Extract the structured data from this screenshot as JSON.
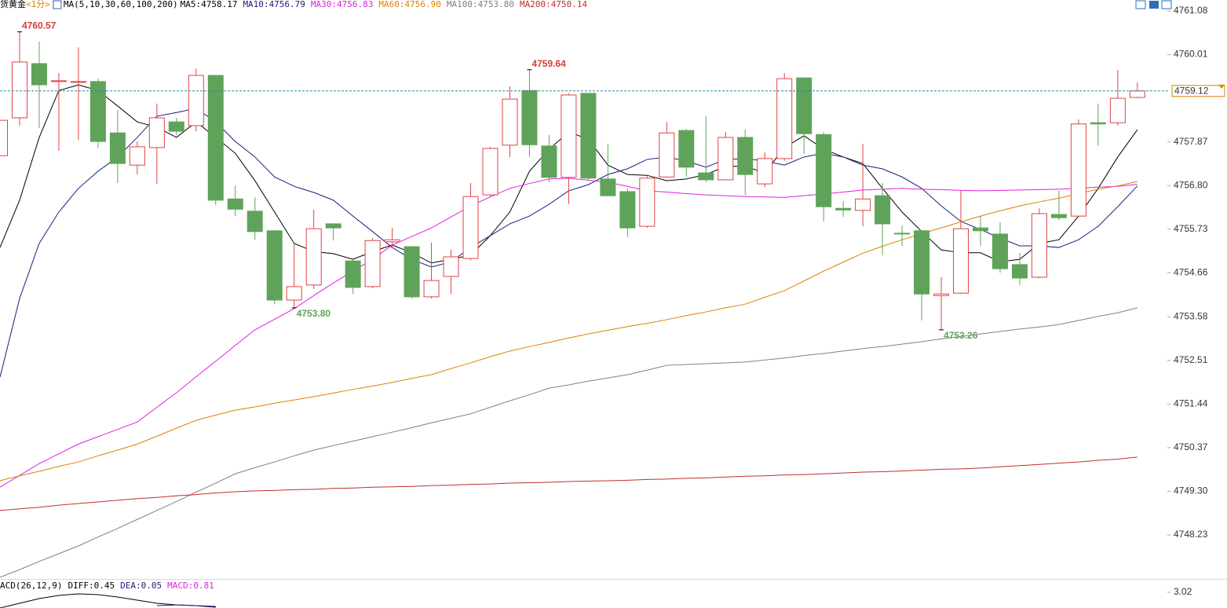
{
  "chart_data": {
    "type": "candlestick",
    "title": "货黄金",
    "period": "<1分>",
    "indicator": "MA(5,10,30,60,100,200)",
    "legend_separator": ":",
    "categories": [
      null,
      null,
      null,
      null,
      null,
      null,
      null,
      null,
      null,
      null,
      null,
      null,
      null,
      null,
      null,
      null,
      null,
      null,
      null,
      null,
      null,
      null,
      null,
      null,
      null,
      null,
      null,
      null,
      null,
      null,
      null,
      null,
      null,
      null,
      null,
      null,
      null,
      null,
      null,
      null,
      null,
      null,
      null,
      null,
      null,
      null,
      null,
      null,
      null,
      null,
      null,
      null,
      null,
      null,
      null,
      null,
      null,
      null,
      null
    ],
    "open": [
      4757.53,
      4758.46,
      4759.79,
      4759.35,
      4759.33,
      4759.35,
      4758.09,
      4757.3,
      4757.73,
      4758.36,
      4758.27,
      4759.5,
      4756.47,
      4756.17,
      4755.69,
      4753.99,
      4754.36,
      4755.86,
      4754.95,
      4754.32,
      4755.42,
      4755.3,
      4754.07,
      4754.57,
      4755.01,
      4756.57,
      4757.79,
      4759.13,
      4757.77,
      4757.0,
      4759.06,
      4756.96,
      4756.65,
      4755.8,
      4757.01,
      4758.15,
      4757.11,
      4756.94,
      4757.98,
      4756.84,
      4757.46,
      4759.44,
      4758.05,
      4756.24,
      4756.19,
      4756.55,
      4755.63,
      4755.69,
      4754.1,
      4754.16,
      4755.76,
      4755.61,
      4754.86,
      4754.55,
      4756.09,
      4756.05,
      4758.34,
      4758.34,
      4758.96
    ],
    "high": [
      4758.4,
      4760.57,
      4760.33,
      4759.56,
      4760.19,
      4759.42,
      4758.65,
      4757.88,
      4758.81,
      4758.46,
      4759.67,
      4759.5,
      4756.8,
      4756.51,
      4755.69,
      4755.38,
      4756.21,
      4755.88,
      4755.03,
      4755.51,
      4755.76,
      4755.3,
      4755.4,
      4755.22,
      4756.86,
      4757.75,
      4759.23,
      4759.64,
      4758.04,
      4759.06,
      4759.06,
      4757.82,
      4756.73,
      4757.03,
      4758.36,
      4758.19,
      4758.5,
      4758.11,
      4758.17,
      4757.61,
      4759.56,
      4759.44,
      4758.11,
      4756.42,
      4757.82,
      4756.86,
      4755.82,
      4755.7,
      4754.55,
      4756.67,
      4756.05,
      4755.9,
      4755.15,
      4756.24,
      4756.67,
      4758.42,
      4758.81,
      4759.63,
      4759.33
    ],
    "low": [
      4757.53,
      4758.27,
      4758.21,
      4757.65,
      4757.92,
      4757.73,
      4756.86,
      4757.07,
      4756.84,
      4758.04,
      4758.13,
      4756.32,
      4756.05,
      4755.47,
      4753.89,
      4753.8,
      4754.26,
      4755.45,
      4754.14,
      4754.28,
      4755.26,
      4754.03,
      4754.03,
      4754.14,
      4754.97,
      4756.53,
      4757.5,
      4757.5,
      4756.88,
      4756.34,
      4756.92,
      4756.53,
      4755.53,
      4755.76,
      4756.99,
      4757.01,
      4756.88,
      4756.92,
      4756.57,
      4756.76,
      4757.4,
      4757.57,
      4755.92,
      4756.03,
      4755.8,
      4755.09,
      4755.32,
      4753.49,
      4753.26,
      4754.14,
      4755.32,
      4754.66,
      4754.36,
      4754.53,
      4755.95,
      4756.03,
      4757.77,
      4758.27,
      4758.94
    ],
    "close": [
      4758.4,
      4759.83,
      4759.27,
      4759.37,
      4759.35,
      4757.88,
      4757.34,
      4757.75,
      4758.46,
      4758.13,
      4759.5,
      4756.44,
      4756.22,
      4755.67,
      4753.99,
      4754.32,
      4755.74,
      4755.76,
      4754.3,
      4755.45,
      4755.47,
      4754.07,
      4754.47,
      4755.05,
      4756.53,
      4757.71,
      4758.92,
      4757.8,
      4757.0,
      4759.02,
      4756.98,
      4756.55,
      4755.76,
      4756.98,
      4758.09,
      4757.25,
      4756.94,
      4757.98,
      4757.07,
      4757.46,
      4759.42,
      4758.07,
      4756.28,
      4756.2,
      4756.47,
      4755.86,
      4755.61,
      4754.14,
      4754.14,
      4755.74,
      4755.69,
      4754.76,
      4754.53,
      4756.11,
      4756.01,
      4758.31,
      4758.31,
      4758.94,
      4759.12
    ],
    "up_color": "#e04343",
    "down_color": "#5fa35a",
    "series": [
      {
        "name": "MA5",
        "color": "#000000",
        "legend_value": 4758.17,
        "values": [
          4755.28,
          4756.44,
          4757.98,
          4759.13,
          4759.27,
          4759.13,
          4758.75,
          4758.36,
          4758.23,
          4757.98,
          4758.36,
          4757.98,
          4757.59,
          4756.92,
          4756.15,
          4755.38,
          4755.18,
          4755.13,
          4754.99,
          4755.18,
          4755.34,
          4755.15,
          4754.9,
          4754.99,
          4755.09,
          4755.57,
          4756.15,
          4757.15,
          4757.69,
          4758.11,
          4757.94,
          4757.3,
          4757.07,
          4757.05,
          4756.92,
          4756.96,
          4757.07,
          4757.27,
          4757.27,
          4757.11,
          4757.73,
          4758.02,
          4757.69,
          4757.5,
          4757.34,
          4756.73,
          4756.15,
          4755.67,
          4755.22,
          4755.15,
          4755.15,
          4754.93,
          4754.99,
          4755.38,
          4755.47,
          4756.05,
          4756.73,
          4757.5,
          4758.17
        ]
      },
      {
        "name": "MA10",
        "color": "#1c1c80",
        "legend_value": 4756.79,
        "values": [
          4752.1,
          4754.03,
          4755.38,
          4756.15,
          4756.73,
          4757.15,
          4757.5,
          4757.98,
          4758.5,
          4758.59,
          4758.69,
          4758.36,
          4757.88,
          4757.5,
          4757.01,
          4756.78,
          4756.63,
          4756.44,
          4756.05,
          4755.67,
          4755.28,
          4754.99,
          4754.8,
          4754.93,
          4755.28,
          4755.57,
          4755.86,
          4756.05,
          4756.34,
          4756.67,
          4756.82,
          4757.07,
          4757.21,
          4757.44,
          4757.5,
          4757.4,
          4757.25,
          4757.44,
          4757.46,
          4757.4,
          4757.3,
          4757.5,
          4757.59,
          4757.5,
          4757.3,
          4757.21,
          4757.01,
          4756.73,
          4756.3,
          4755.92,
          4755.72,
          4755.51,
          4755.32,
          4755.32,
          4755.28,
          4755.47,
          4755.8,
          4756.28,
          4756.79
        ]
      },
      {
        "name": "MA30",
        "color": "#e020e0",
        "legend_value": 4756.83,
        "values": [
          4749.4,
          4749.69,
          4749.98,
          4750.22,
          4750.46,
          4750.64,
          4750.82,
          4751.0,
          4751.36,
          4751.72,
          4752.11,
          4752.49,
          4752.88,
          4753.26,
          4753.52,
          4753.78,
          4754.1,
          4754.41,
          4754.7,
          4754.99,
          4755.34,
          4755.55,
          4755.76,
          4756.03,
          4756.3,
          4756.52,
          4756.73,
          4756.85,
          4756.96,
          4756.98,
          4756.93,
          4756.88,
          4756.78,
          4756.67,
          4756.64,
          4756.6,
          4756.57,
          4756.55,
          4756.53,
          4756.52,
          4756.51,
          4756.55,
          4756.59,
          4756.64,
          4756.69,
          4756.71,
          4756.73,
          4756.71,
          4756.7,
          4756.68,
          4756.67,
          4756.68,
          4756.69,
          4756.7,
          4756.71,
          4756.73,
          4756.76,
          4756.78,
          4756.83
        ]
      },
      {
        "name": "MA60",
        "color": "#e08000",
        "legend_value": {
          "value": 4756.9,
          "label": "4756.90"
        },
        "values": [
          4749.56,
          4749.68,
          4749.79,
          4749.91,
          4750.02,
          4750.17,
          4750.31,
          4750.46,
          4750.65,
          4750.85,
          4751.04,
          4751.17,
          4751.29,
          4751.37,
          4751.46,
          4751.54,
          4751.62,
          4751.71,
          4751.8,
          4751.88,
          4751.97,
          4752.07,
          4752.16,
          4752.31,
          4752.45,
          4752.6,
          4752.74,
          4752.85,
          4752.95,
          4753.06,
          4753.16,
          4753.25,
          4753.34,
          4753.42,
          4753.51,
          4753.61,
          4753.7,
          4753.8,
          4753.89,
          4754.06,
          4754.22,
          4754.46,
          4754.7,
          4754.92,
          4755.14,
          4755.31,
          4755.47,
          4755.62,
          4755.76,
          4755.91,
          4756.05,
          4756.18,
          4756.3,
          4756.4,
          4756.49,
          4756.6,
          4756.71,
          4756.79,
          4756.9
        ]
      },
      {
        "name": "MA100",
        "color": "#808080",
        "legend_value": {
          "value": 4753.8,
          "label": "4753.80"
        },
        "values": [
          4747.19,
          4747.38,
          4747.58,
          4747.77,
          4747.96,
          4748.18,
          4748.39,
          4748.61,
          4748.83,
          4749.05,
          4749.28,
          4749.5,
          4749.73,
          4749.88,
          4750.02,
          4750.17,
          4750.31,
          4750.42,
          4750.53,
          4750.64,
          4750.75,
          4750.86,
          4750.98,
          4751.09,
          4751.2,
          4751.36,
          4751.52,
          4751.67,
          4751.83,
          4751.91,
          4752.0,
          4752.08,
          4752.16,
          4752.27,
          4752.39,
          4752.41,
          4752.43,
          4752.45,
          4752.47,
          4752.52,
          4752.57,
          4752.63,
          4752.68,
          4752.74,
          4752.8,
          4752.85,
          4752.91,
          4752.97,
          4753.04,
          4753.1,
          4753.16,
          4753.22,
          4753.28,
          4753.33,
          4753.39,
          4753.49,
          4753.59,
          4753.68,
          4753.8
        ]
      },
      {
        "name": "MA200",
        "color": "#c0302c",
        "legend_value": 4750.14,
        "values": [
          4748.83,
          4748.87,
          4748.91,
          4748.96,
          4749.0,
          4749.04,
          4749.08,
          4749.12,
          4749.15,
          4749.19,
          4749.22,
          4749.26,
          4749.29,
          4749.31,
          4749.32,
          4749.34,
          4749.35,
          4749.37,
          4749.38,
          4749.4,
          4749.41,
          4749.42,
          4749.44,
          4749.45,
          4749.47,
          4749.48,
          4749.5,
          4749.51,
          4749.52,
          4749.54,
          4749.55,
          4749.56,
          4749.57,
          4749.59,
          4749.6,
          4749.62,
          4749.63,
          4749.65,
          4749.67,
          4749.68,
          4749.7,
          4749.71,
          4749.73,
          4749.75,
          4749.77,
          4749.78,
          4749.8,
          4749.82,
          4749.84,
          4749.85,
          4749.87,
          4749.9,
          4749.93,
          4749.96,
          4749.99,
          4750.02,
          4750.06,
          4750.09,
          4750.14
        ]
      }
    ],
    "annotations": [
      {
        "label": "4760.57",
        "value": 4760.57
      },
      {
        "label": "4759.64",
        "value": 4759.64
      },
      {
        "label": "4753.80",
        "value": 4753.8
      },
      {
        "label": "4753.26",
        "value": 4753.26
      }
    ],
    "high_color": "#d83a36",
    "low_color": "#5fa35a",
    "last_price": 4759.12,
    "last_price_color": "#e08000",
    "ylim": [
      4747.17,
      4761.35
    ],
    "yticks": [
      4761.08,
      4760.01,
      4757.87,
      {
        "value": 4756.8,
        "label": "4756.80"
      },
      4755.73,
      4754.66,
      4753.58,
      4752.51,
      4751.44,
      4750.37,
      {
        "value": 4749.3,
        "label": "4749.30"
      },
      4748.23
    ],
    "grid": false,
    "macd": {
      "title": "ACD(26,12,9)",
      "ylim": [
        2.62,
        3.3
      ],
      "yticks": [
        3.02
      ],
      "series": [
        {
          "name": "DIFF",
          "color": "#000000",
          "legend_value": 0.45,
          "values": [
            2.62,
            2.74,
            2.86,
            2.94,
            2.98,
            2.96,
            2.9,
            2.82,
            2.74,
            2.7,
            2.68,
            2.64,
            null,
            null,
            null,
            null,
            null,
            null,
            null,
            null,
            null,
            null,
            null,
            null,
            null,
            null,
            null,
            null,
            null,
            null,
            null,
            null,
            null,
            null,
            null,
            null,
            null,
            null,
            null,
            null,
            null,
            null,
            null,
            null,
            null,
            null,
            null,
            null,
            null,
            null,
            null,
            null,
            null,
            null,
            null,
            null,
            null,
            null,
            null
          ]
        },
        {
          "name": "DEA",
          "color": "#1c1c80",
          "legend_value": 0.05,
          "values": [
            null,
            null,
            null,
            null,
            null,
            null,
            null,
            null,
            2.68,
            2.7,
            2.68,
            2.66,
            null,
            null,
            null,
            null,
            null,
            null,
            null,
            null,
            null,
            null,
            null,
            null,
            null,
            null,
            null,
            null,
            null,
            null,
            null,
            null,
            null,
            null,
            null,
            null,
            null,
            null,
            null,
            null,
            null,
            null,
            null,
            null,
            null,
            null,
            null,
            null,
            null,
            null,
            null,
            null,
            null,
            null,
            null,
            null,
            null,
            null,
            null
          ]
        }
      ],
      "bar_name": "MACD",
      "bar_color": "#e020e0",
      "bar_legend_value": 0.81
    }
  }
}
